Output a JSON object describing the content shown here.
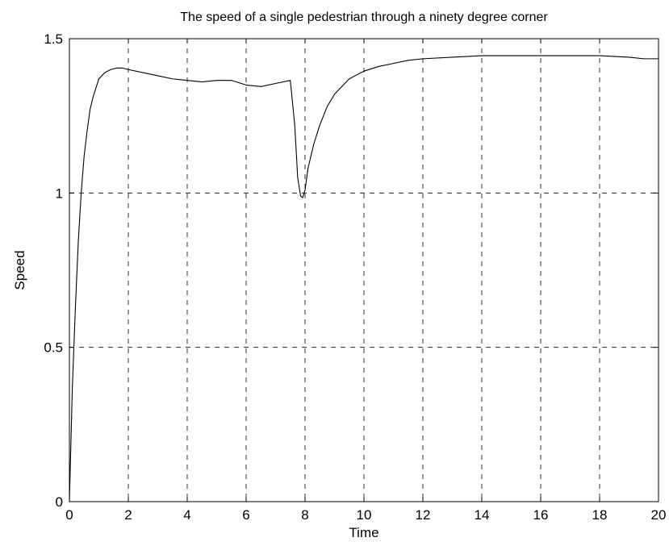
{
  "chart_data": {
    "type": "line",
    "title": "The speed of a single pedestrian through a ninety degree corner",
    "xlabel": "Time",
    "ylabel": "Speed",
    "xlim": [
      0,
      20
    ],
    "ylim": [
      0,
      1.5
    ],
    "x_ticks": [
      0,
      2,
      4,
      6,
      8,
      10,
      12,
      14,
      16,
      18,
      20
    ],
    "x_tick_labels": [
      "0",
      "2",
      "4",
      "6",
      "8",
      "10",
      "12",
      "14",
      "16",
      "18",
      "20"
    ],
    "y_ticks": [
      0,
      0.5,
      1,
      1.5
    ],
    "y_tick_labels": [
      "0",
      "0.5",
      "1",
      "1.5"
    ],
    "grid": true,
    "grid_style": "dashed",
    "legend": "none",
    "line_color": "#000000",
    "series": [
      {
        "x": [
          0,
          0.1,
          0.2,
          0.3,
          0.4,
          0.5,
          0.6,
          0.7,
          0.8,
          0.9,
          1.0,
          1.2,
          1.4,
          1.6,
          1.8,
          2.0,
          2.5,
          3.0,
          3.5,
          4.0,
          4.5,
          5.0,
          5.5,
          6.0,
          6.5,
          7.0,
          7.5,
          7.65,
          7.75,
          7.85,
          7.92,
          8.0,
          8.1,
          8.3,
          8.5,
          8.75,
          9.0,
          9.5,
          10.0,
          10.5,
          11.0,
          11.5,
          12.0,
          13.0,
          14.0,
          15.0,
          16.0,
          17.0,
          18.0,
          19.0,
          19.5,
          20.0
        ],
        "y": [
          0.0,
          0.37,
          0.62,
          0.84,
          1.0,
          1.12,
          1.2,
          1.27,
          1.31,
          1.34,
          1.37,
          1.39,
          1.4,
          1.405,
          1.405,
          1.4,
          1.39,
          1.38,
          1.37,
          1.365,
          1.36,
          1.365,
          1.365,
          1.35,
          1.345,
          1.355,
          1.365,
          1.22,
          1.05,
          0.99,
          0.985,
          1.01,
          1.08,
          1.16,
          1.22,
          1.28,
          1.32,
          1.37,
          1.395,
          1.41,
          1.42,
          1.43,
          1.435,
          1.44,
          1.445,
          1.445,
          1.445,
          1.445,
          1.445,
          1.44,
          1.435,
          1.435
        ]
      }
    ]
  }
}
